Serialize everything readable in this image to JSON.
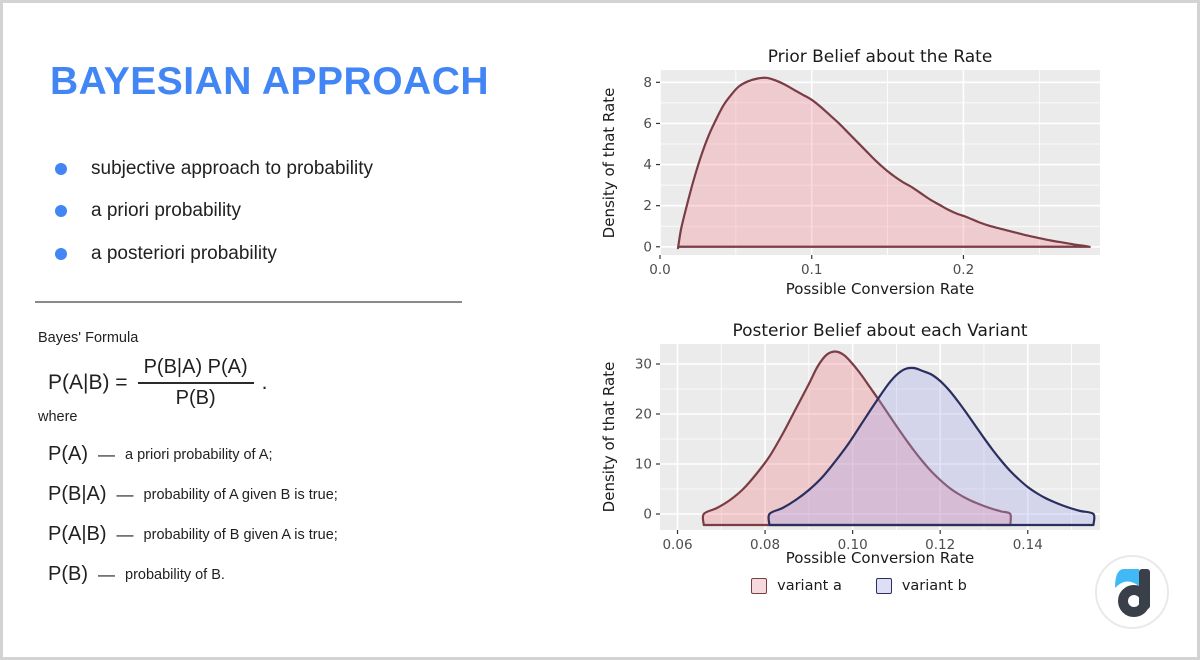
{
  "slide": {
    "accent_color": "#4285F4",
    "text_color": "#212121",
    "title": "BAYESIAN APPROACH",
    "bullets": [
      "subjective approach to probability",
      "a priori probability",
      "a posteriori probability"
    ],
    "formula": {
      "label": "Bayes' Formula",
      "lhs": "P(A|B) =",
      "numerator": "P(B|A) P(A)",
      "denominator": "P(B)",
      "period": ".",
      "where": "where",
      "definitions": [
        {
          "term": "P(A)",
          "dash": "—",
          "desc": "a priori probability of A;"
        },
        {
          "term": "P(B|A)",
          "dash": "—",
          "desc": "probability of A given B is true;"
        },
        {
          "term": "P(A|B)",
          "dash": "—",
          "desc": "probability of B given A is true;"
        },
        {
          "term": "P(B)",
          "dash": "—",
          "desc": "probability of B."
        }
      ]
    }
  },
  "chart_data": [
    {
      "type": "area",
      "title": "Prior Belief about the Rate",
      "xlabel": "Possible Conversion Rate",
      "ylabel": "Density of that Rate",
      "xlim": [
        0.0,
        0.29
      ],
      "ylim": [
        -0.4,
        8.6
      ],
      "panel_bg": "#EBEBEB",
      "grid_color": "#FFFFFF",
      "tick_color": "#333333",
      "xticks": [
        {
          "v": 0.0,
          "label": "0.0"
        },
        {
          "v": 0.1,
          "label": "0.1"
        },
        {
          "v": 0.2,
          "label": "0.2"
        }
      ],
      "xminor": [
        0.05,
        0.15,
        0.25
      ],
      "yticks": [
        {
          "v": 0,
          "label": "0"
        },
        {
          "v": 2,
          "label": "2"
        },
        {
          "v": 4,
          "label": "4"
        },
        {
          "v": 6,
          "label": "6"
        },
        {
          "v": 8,
          "label": "8"
        }
      ],
      "yminor": [
        1,
        3,
        5,
        7
      ],
      "series": [
        {
          "name": "prior density",
          "stroke": "#7A3D45",
          "fill": "rgba(244,128,138,0.30)",
          "baseline": 0,
          "points": [
            [
              0.012,
              0
            ],
            [
              0.014,
              0.9
            ],
            [
              0.018,
              2.1
            ],
            [
              0.022,
              3.2
            ],
            [
              0.027,
              4.4
            ],
            [
              0.032,
              5.4
            ],
            [
              0.037,
              6.2
            ],
            [
              0.042,
              6.9
            ],
            [
              0.047,
              7.4
            ],
            [
              0.052,
              7.8
            ],
            [
              0.058,
              8.05
            ],
            [
              0.064,
              8.18
            ],
            [
              0.07,
              8.22
            ],
            [
              0.076,
              8.1
            ],
            [
              0.082,
              7.9
            ],
            [
              0.088,
              7.65
            ],
            [
              0.094,
              7.4
            ],
            [
              0.1,
              7.15
            ],
            [
              0.106,
              6.8
            ],
            [
              0.112,
              6.4
            ],
            [
              0.118,
              6.0
            ],
            [
              0.124,
              5.55
            ],
            [
              0.13,
              5.1
            ],
            [
              0.136,
              4.65
            ],
            [
              0.142,
              4.2
            ],
            [
              0.148,
              3.8
            ],
            [
              0.154,
              3.45
            ],
            [
              0.16,
              3.15
            ],
            [
              0.166,
              2.9
            ],
            [
              0.172,
              2.6
            ],
            [
              0.178,
              2.3
            ],
            [
              0.184,
              2.05
            ],
            [
              0.19,
              1.8
            ],
            [
              0.196,
              1.6
            ],
            [
              0.202,
              1.45
            ],
            [
              0.21,
              1.2
            ],
            [
              0.218,
              1.0
            ],
            [
              0.226,
              0.85
            ],
            [
              0.234,
              0.7
            ],
            [
              0.242,
              0.55
            ],
            [
              0.25,
              0.42
            ],
            [
              0.258,
              0.3
            ],
            [
              0.266,
              0.2
            ],
            [
              0.274,
              0.1
            ],
            [
              0.28,
              0.04
            ],
            [
              0.283,
              0
            ]
          ]
        }
      ]
    },
    {
      "type": "area",
      "title": "Posterior Belief about each Variant",
      "xlabel": "Possible Conversion Rate",
      "ylabel": "Density of that Rate",
      "xlim": [
        0.056,
        0.1565
      ],
      "ylim": [
        -3.2,
        34
      ],
      "panel_bg": "#EBEBEB",
      "grid_color": "#FFFFFF",
      "tick_color": "#333333",
      "xticks": [
        {
          "v": 0.06,
          "label": "0.06"
        },
        {
          "v": 0.08,
          "label": "0.08"
        },
        {
          "v": 0.1,
          "label": "0.10"
        },
        {
          "v": 0.12,
          "label": "0.12"
        },
        {
          "v": 0.14,
          "label": "0.14"
        }
      ],
      "xminor": [
        0.07,
        0.09,
        0.11,
        0.13,
        0.15
      ],
      "yticks": [
        {
          "v": 0,
          "label": "0"
        },
        {
          "v": 10,
          "label": "10"
        },
        {
          "v": 20,
          "label": "20"
        },
        {
          "v": 30,
          "label": "30"
        }
      ],
      "yminor": [
        5,
        15,
        25
      ],
      "legend": [
        {
          "label": "variant a",
          "fill": "#F6D9DD",
          "stroke": "#7A3D45"
        },
        {
          "label": "variant b",
          "fill": "#DEDEF4",
          "stroke": "#2A2F5E"
        }
      ],
      "series": [
        {
          "name": "variant a",
          "stroke": "#7A3D45",
          "fill": "rgba(244,128,138,0.32)",
          "baseline": -2.2,
          "points": [
            [
              0.066,
              0
            ],
            [
              0.069,
              1.2
            ],
            [
              0.072,
              2.8
            ],
            [
              0.075,
              5
            ],
            [
              0.078,
              8
            ],
            [
              0.081,
              11.5
            ],
            [
              0.084,
              16
            ],
            [
              0.087,
              21
            ],
            [
              0.09,
              26
            ],
            [
              0.092,
              29.5
            ],
            [
              0.094,
              31.8
            ],
            [
              0.096,
              32.5
            ],
            [
              0.098,
              31.8
            ],
            [
              0.1,
              30
            ],
            [
              0.102,
              27.8
            ],
            [
              0.104,
              25.3
            ],
            [
              0.106,
              22.8
            ],
            [
              0.108,
              20.2
            ],
            [
              0.11,
              17.6
            ],
            [
              0.112,
              15.1
            ],
            [
              0.114,
              12.7
            ],
            [
              0.116,
              10.5
            ],
            [
              0.118,
              8.5
            ],
            [
              0.12,
              6.8
            ],
            [
              0.122,
              5.3
            ],
            [
              0.124,
              4.1
            ],
            [
              0.126,
              3.1
            ],
            [
              0.128,
              2.3
            ],
            [
              0.13,
              1.6
            ],
            [
              0.132,
              1.0
            ],
            [
              0.134,
              0.5
            ],
            [
              0.136,
              0
            ]
          ]
        },
        {
          "name": "variant b",
          "stroke": "#2A2F5E",
          "fill": "rgba(165,165,235,0.32)",
          "baseline": -2.2,
          "points": [
            [
              0.081,
              0
            ],
            [
              0.084,
              1.2
            ],
            [
              0.087,
              2.8
            ],
            [
              0.09,
              4.8
            ],
            [
              0.093,
              7.3
            ],
            [
              0.096,
              10.5
            ],
            [
              0.099,
              14
            ],
            [
              0.102,
              18
            ],
            [
              0.105,
              22
            ],
            [
              0.108,
              25.8
            ],
            [
              0.11,
              27.8
            ],
            [
              0.112,
              29.0
            ],
            [
              0.114,
              29.2
            ],
            [
              0.116,
              28.6
            ],
            [
              0.118,
              27.9
            ],
            [
              0.12,
              26.6
            ],
            [
              0.122,
              24.8
            ],
            [
              0.124,
              22.6
            ],
            [
              0.126,
              20.2
            ],
            [
              0.128,
              17.7
            ],
            [
              0.13,
              15.2
            ],
            [
              0.132,
              12.8
            ],
            [
              0.134,
              10.6
            ],
            [
              0.136,
              8.6
            ],
            [
              0.138,
              6.9
            ],
            [
              0.14,
              5.4
            ],
            [
              0.142,
              4.2
            ],
            [
              0.144,
              3.2
            ],
            [
              0.146,
              2.4
            ],
            [
              0.148,
              1.7
            ],
            [
              0.15,
              1.1
            ],
            [
              0.152,
              0.6
            ],
            [
              0.155,
              0
            ]
          ]
        }
      ]
    }
  ],
  "logo": {
    "dark_color": "#394049",
    "blue_color": "#41B9F5",
    "ring_color": "#E9E9E9"
  }
}
